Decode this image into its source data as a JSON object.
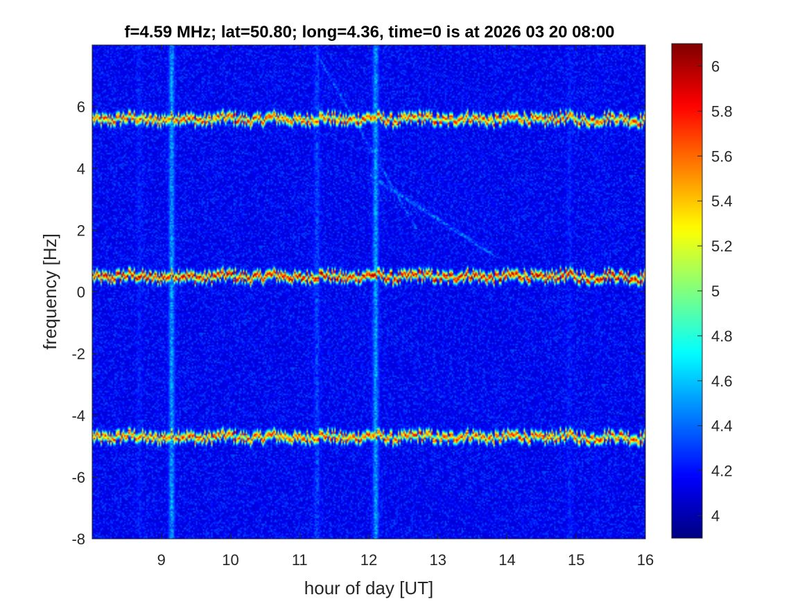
{
  "chart_data": {
    "type": "heatmap",
    "title": "f=4.59 MHz;  lat=50.80; long=4.36, time=0 is at 2026 03 20 08:00",
    "xlabel": "hour of day [UT]",
    "ylabel": "frequency [Hz]",
    "xlim": [
      8,
      16
    ],
    "ylim": [
      -8,
      8
    ],
    "xticks": [
      9,
      10,
      11,
      12,
      13,
      14,
      15,
      16
    ],
    "yticks": [
      -8,
      -6,
      -4,
      -2,
      0,
      2,
      4,
      6
    ],
    "xtick_labels": [
      "9",
      "10",
      "11",
      "12",
      "13",
      "14",
      "15",
      "16"
    ],
    "ytick_labels": [
      "-8",
      "-6",
      "-4",
      "-2",
      "0",
      "2",
      "4",
      "6"
    ],
    "colorbar": {
      "colormap": "jet",
      "range": [
        3.9,
        6.1
      ],
      "ticks": [
        4,
        4.2,
        4.4,
        4.6,
        4.8,
        5,
        5.2,
        5.4,
        5.6,
        5.8,
        6
      ],
      "tick_labels": [
        "4",
        "4.2",
        "4.4",
        "4.6",
        "4.8",
        "5",
        "5.2",
        "5.4",
        "5.6",
        "5.8",
        "6"
      ]
    },
    "background_level": 4.1,
    "horizontal_traces": [
      {
        "freq_hz": 5.6,
        "level": 5.8
      },
      {
        "freq_hz": 0.5,
        "level": 6.0
      },
      {
        "freq_hz": -4.7,
        "level": 5.8
      }
    ],
    "vertical_bands": [
      {
        "hour": 8.68,
        "level": 4.4
      },
      {
        "hour": 9.15,
        "level": 4.7
      },
      {
        "hour": 11.25,
        "level": 4.5
      },
      {
        "hour": 12.1,
        "level": 4.7
      },
      {
        "hour": 14.9,
        "level": 4.4
      },
      {
        "hour": 15.3,
        "level": 4.3
      }
    ],
    "diagonal_traces": [
      {
        "from": [
          11.3,
          7.5
        ],
        "to": [
          12.7,
          2.0
        ],
        "level": 4.5
      },
      {
        "from": [
          12.0,
          3.8
        ],
        "to": [
          13.8,
          1.2
        ],
        "level": 4.5
      }
    ]
  }
}
